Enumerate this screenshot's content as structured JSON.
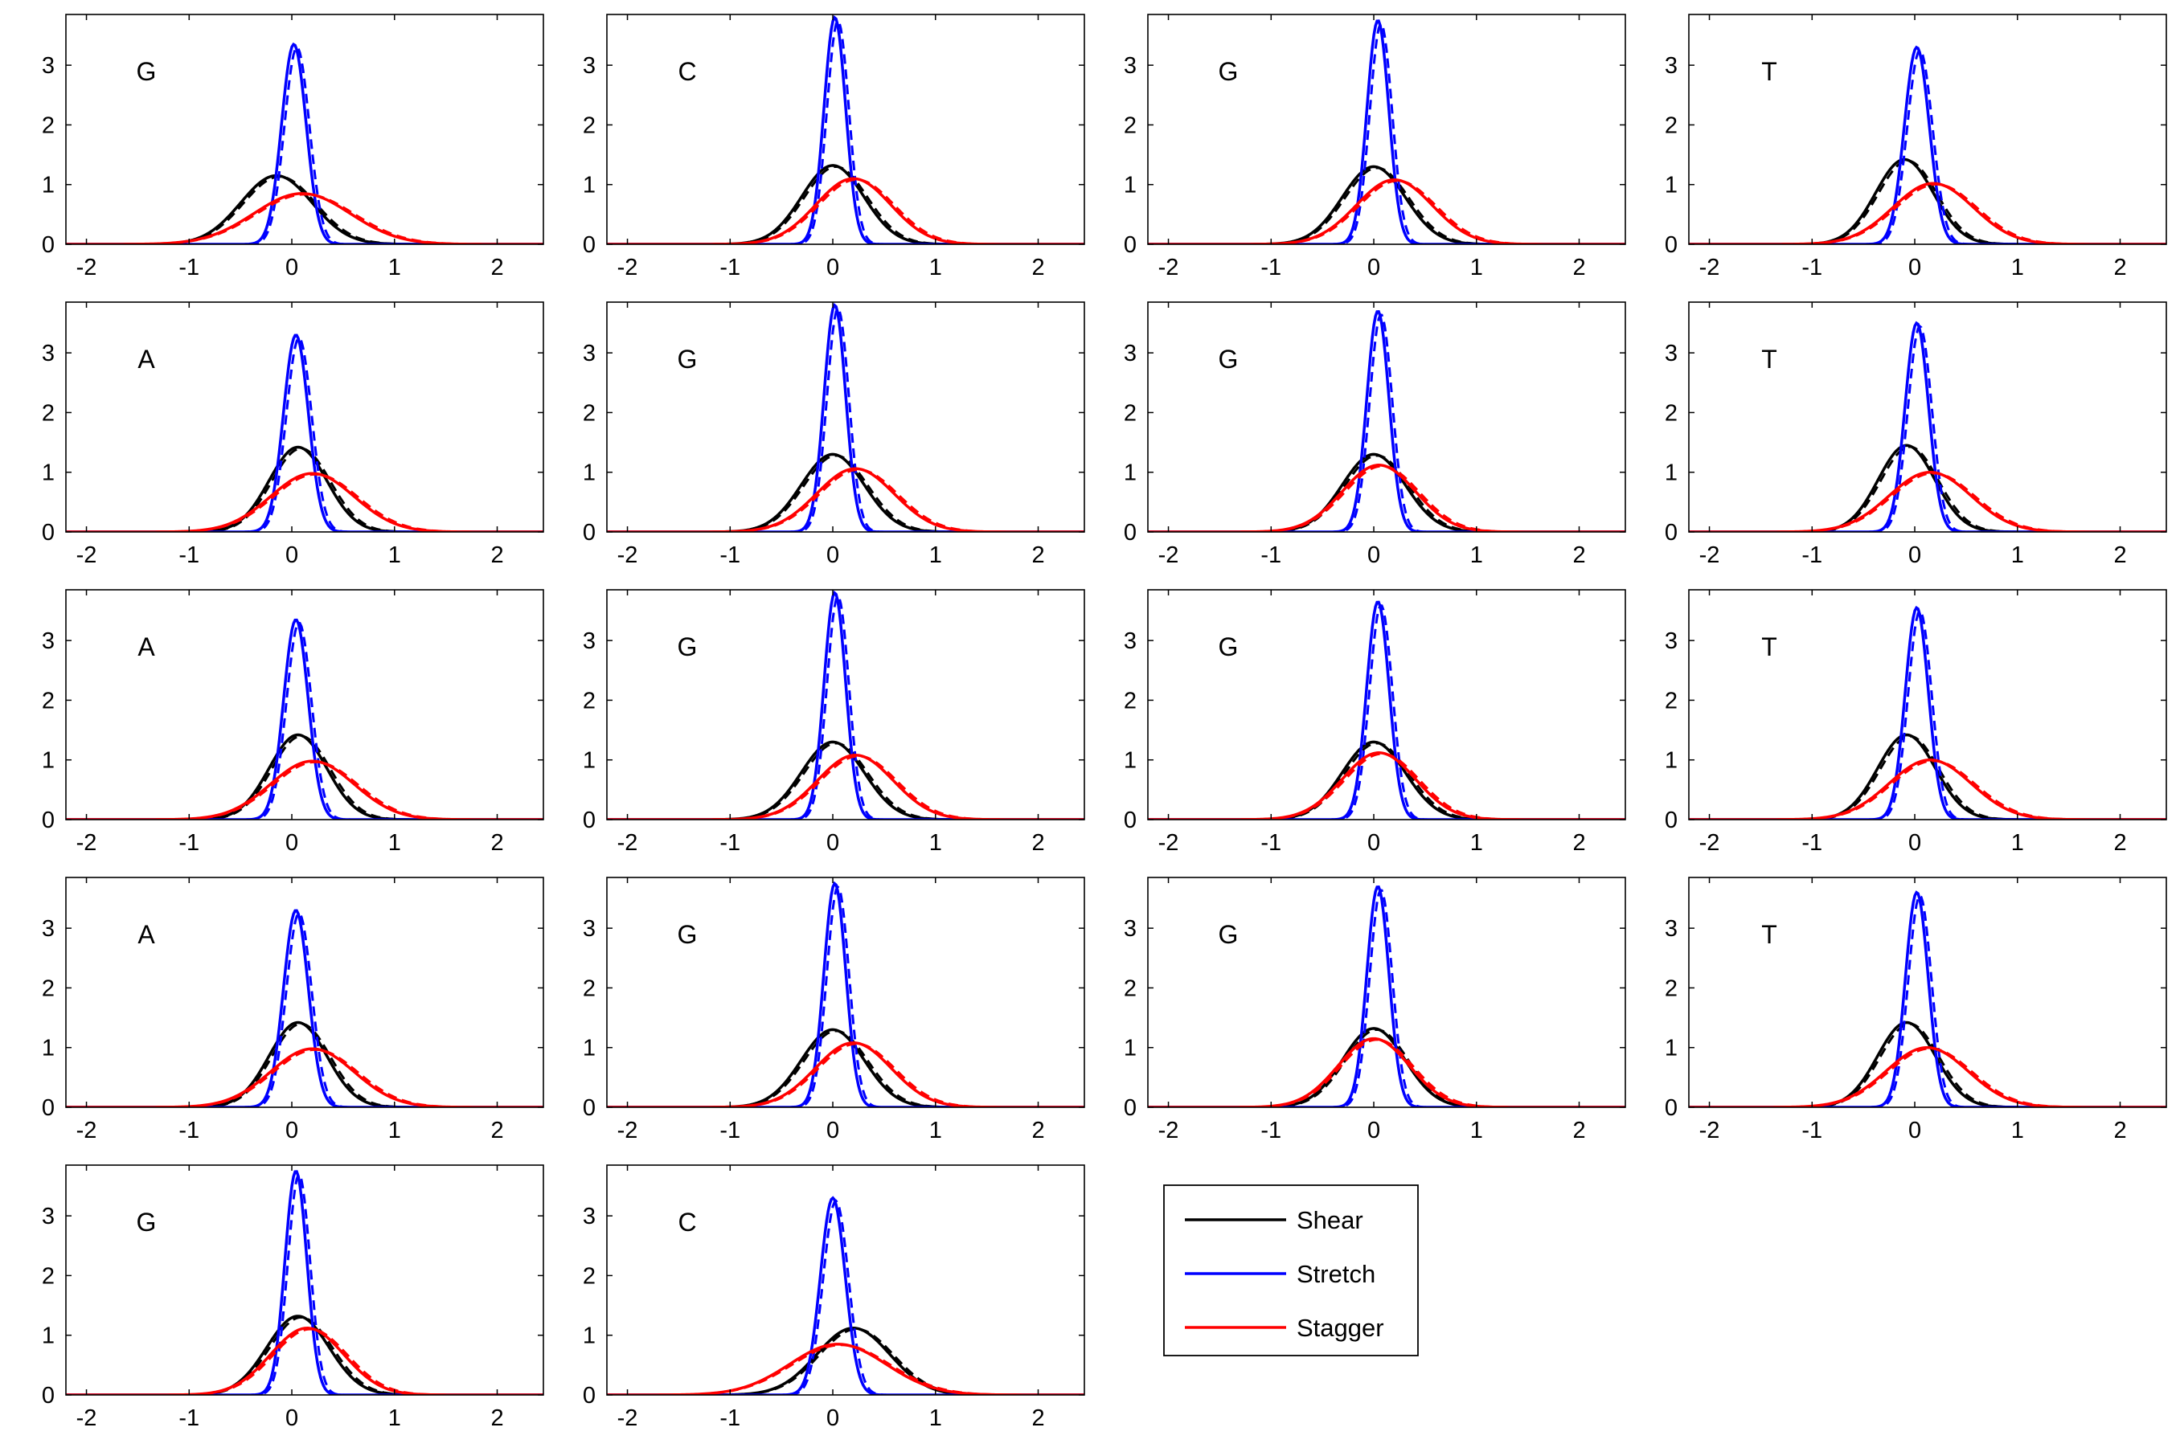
{
  "chart_data": {
    "type": "line",
    "xlim": [
      -2.2,
      2.45
    ],
    "ylim": [
      0,
      3.85
    ],
    "xticks": [
      -2,
      -1,
      0,
      1,
      2
    ],
    "yticks": [
      0,
      1,
      2,
      3
    ],
    "grid": false,
    "legend": {
      "placement": "right of bottom row",
      "entries": [
        {
          "label": "Shear",
          "color": "#000000"
        },
        {
          "label": "Stretch",
          "color": "#0000ff"
        },
        {
          "label": "Stagger",
          "color": "#ff0000"
        }
      ]
    },
    "series_colors": {
      "shear": "#000000",
      "stretch": "#0000ff",
      "stagger": "#ff0000"
    },
    "panels": [
      {
        "label": "G",
        "shear": {
          "mu": -0.15,
          "peak": 1.15
        },
        "stretch": {
          "mu": 0.02,
          "peak": 3.35
        },
        "stagger": {
          "mu": 0.1,
          "peak": 0.85
        }
      },
      {
        "label": "C",
        "shear": {
          "mu": 0.0,
          "peak": 1.32
        },
        "stretch": {
          "mu": 0.02,
          "peak": 3.8
        },
        "stagger": {
          "mu": 0.2,
          "peak": 1.1
        }
      },
      {
        "label": "G",
        "shear": {
          "mu": 0.0,
          "peak": 1.3
        },
        "stretch": {
          "mu": 0.04,
          "peak": 3.75
        },
        "stagger": {
          "mu": 0.2,
          "peak": 1.08
        }
      },
      {
        "label": "T",
        "shear": {
          "mu": -0.1,
          "peak": 1.42
        },
        "stretch": {
          "mu": 0.02,
          "peak": 3.3
        },
        "stagger": {
          "mu": 0.18,
          "peak": 1.02
        }
      },
      {
        "label": "A",
        "shear": {
          "mu": 0.06,
          "peak": 1.42
        },
        "stretch": {
          "mu": 0.04,
          "peak": 3.3
        },
        "stagger": {
          "mu": 0.2,
          "peak": 0.98
        }
      },
      {
        "label": "G",
        "shear": {
          "mu": 0.0,
          "peak": 1.3
        },
        "stretch": {
          "mu": 0.02,
          "peak": 3.8
        },
        "stagger": {
          "mu": 0.22,
          "peak": 1.06
        }
      },
      {
        "label": "G",
        "shear": {
          "mu": 0.0,
          "peak": 1.3
        },
        "stretch": {
          "mu": 0.04,
          "peak": 3.7
        },
        "stagger": {
          "mu": 0.05,
          "peak": 1.12
        }
      },
      {
        "label": "T",
        "shear": {
          "mu": -0.08,
          "peak": 1.45
        },
        "stretch": {
          "mu": 0.02,
          "peak": 3.5
        },
        "stagger": {
          "mu": 0.15,
          "peak": 1.0
        }
      },
      {
        "label": "A",
        "shear": {
          "mu": 0.06,
          "peak": 1.42
        },
        "stretch": {
          "mu": 0.04,
          "peak": 3.35
        },
        "stagger": {
          "mu": 0.2,
          "peak": 0.98
        }
      },
      {
        "label": "G",
        "shear": {
          "mu": 0.0,
          "peak": 1.3
        },
        "stretch": {
          "mu": 0.02,
          "peak": 3.8
        },
        "stagger": {
          "mu": 0.22,
          "peak": 1.08
        }
      },
      {
        "label": "G",
        "shear": {
          "mu": 0.0,
          "peak": 1.3
        },
        "stretch": {
          "mu": 0.04,
          "peak": 3.65
        },
        "stagger": {
          "mu": 0.05,
          "peak": 1.12
        }
      },
      {
        "label": "T",
        "shear": {
          "mu": -0.08,
          "peak": 1.42
        },
        "stretch": {
          "mu": 0.02,
          "peak": 3.55
        },
        "stagger": {
          "mu": 0.15,
          "peak": 1.0
        }
      },
      {
        "label": "A",
        "shear": {
          "mu": 0.06,
          "peak": 1.42
        },
        "stretch": {
          "mu": 0.04,
          "peak": 3.3
        },
        "stagger": {
          "mu": 0.2,
          "peak": 0.98
        }
      },
      {
        "label": "G",
        "shear": {
          "mu": 0.0,
          "peak": 1.3
        },
        "stretch": {
          "mu": 0.02,
          "peak": 3.75
        },
        "stagger": {
          "mu": 0.2,
          "peak": 1.08
        }
      },
      {
        "label": "G",
        "shear": {
          "mu": 0.0,
          "peak": 1.32
        },
        "stretch": {
          "mu": 0.04,
          "peak": 3.7
        },
        "stagger": {
          "mu": 0.0,
          "peak": 1.15
        }
      },
      {
        "label": "T",
        "shear": {
          "mu": -0.08,
          "peak": 1.42
        },
        "stretch": {
          "mu": 0.02,
          "peak": 3.6
        },
        "stagger": {
          "mu": 0.12,
          "peak": 1.0
        }
      },
      {
        "label": "G",
        "shear": {
          "mu": 0.06,
          "peak": 1.32
        },
        "stretch": {
          "mu": 0.04,
          "peak": 3.75
        },
        "stagger": {
          "mu": 0.15,
          "peak": 1.12
        }
      },
      {
        "label": "C",
        "shear": {
          "mu": 0.2,
          "peak": 1.12
        },
        "stretch": {
          "mu": 0.0,
          "peak": 3.3
        },
        "stagger": {
          "mu": 0.05,
          "peak": 0.85
        }
      }
    ]
  }
}
